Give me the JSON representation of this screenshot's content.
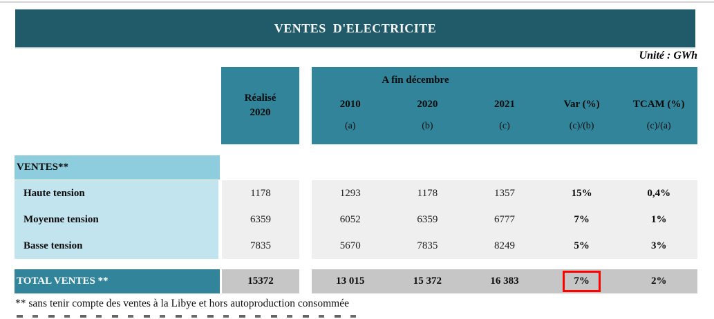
{
  "page": {
    "title": "VENTES  D'ELECTRICITE",
    "unit_label": "Unité : GWh"
  },
  "table": {
    "header": {
      "realise_line1": "Réalisé",
      "realise_line2": "2020",
      "group_label": "A fin décembre",
      "columns": [
        {
          "label": "2010",
          "sub": "(a)"
        },
        {
          "label": "2020",
          "sub": "(b)"
        },
        {
          "label": "2021",
          "sub": "(c)"
        },
        {
          "label": "Var (%)",
          "sub": "(c)/(b)"
        },
        {
          "label": "TCAM (%)",
          "sub": "(c)/(a)"
        }
      ]
    },
    "section_label": "VENTES**",
    "rows": [
      {
        "label": "Haute tension",
        "realise": "1178",
        "values": [
          "1293",
          "1178",
          "1357",
          "15%",
          "0,4%"
        ]
      },
      {
        "label": "Moyenne tension",
        "realise": "6359",
        "values": [
          "6052",
          "6359",
          "6777",
          "7%",
          "1%"
        ]
      },
      {
        "label": "Basse tension",
        "realise": "7835",
        "values": [
          "5670",
          "7835",
          "8249",
          "5%",
          "3%"
        ]
      }
    ],
    "total": {
      "label": "TOTAL VENTES **",
      "realise": "15372",
      "values": [
        "13 015",
        "15 372",
        "16 383",
        "7%",
        "2%"
      ],
      "highlighted_value_index": 3
    }
  },
  "footnote": "** sans tenir compte des ventes à la Libye et hors autoproduction consommée",
  "colors": {
    "title_bar": "#215a68",
    "header_teal": "#318499",
    "section_blue": "#8ecddd",
    "row_blue": "#c2e4ee",
    "data_gray": "#efefef",
    "total_gray": "#c6c6c6",
    "highlight_red": "#fe0000"
  }
}
